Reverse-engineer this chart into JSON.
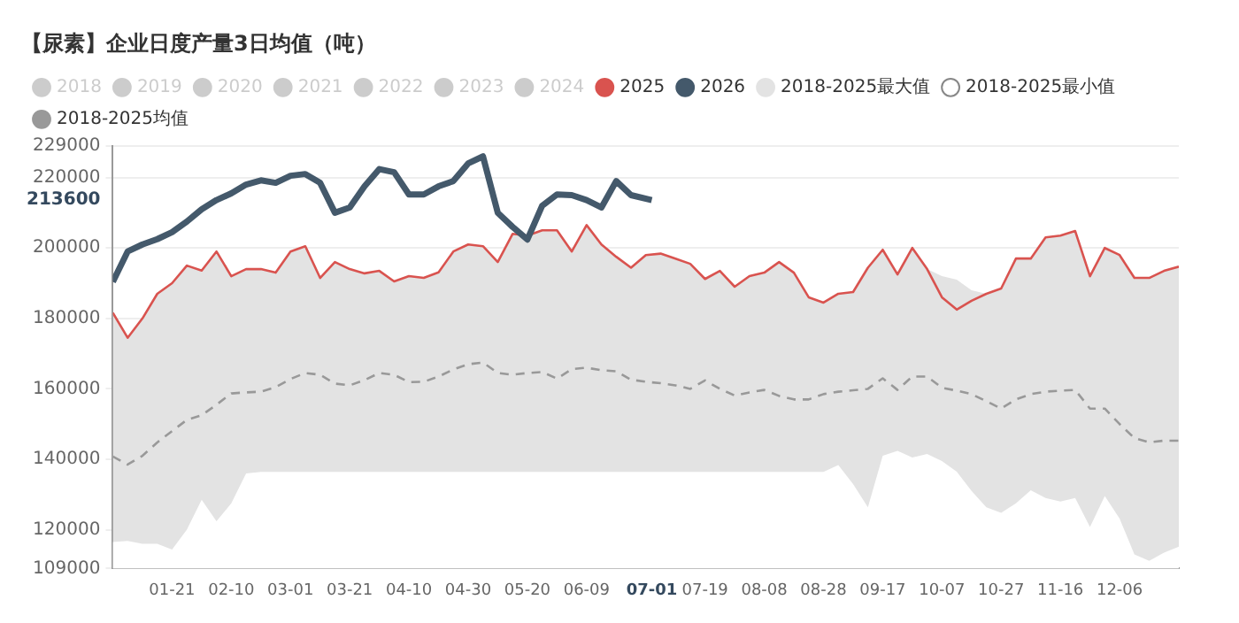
{
  "chart_data": {
    "type": "line",
    "title": "【尿素】企业日度产量3日均值（吨）",
    "x": [
      "--01-01",
      "--01-06",
      "--01-11",
      "--01-16",
      "--01-21",
      "--01-26",
      "--01-31",
      "--02-05",
      "--02-10",
      "--02-15",
      "--02-20",
      "--02-25",
      "--03-01",
      "--03-06",
      "--03-11",
      "--03-16",
      "--03-21",
      "--03-26",
      "--03-31",
      "--04-05",
      "--04-10",
      "--04-15",
      "--04-20",
      "--04-25",
      "--04-30",
      "--05-05",
      "--05-10",
      "--05-15",
      "--05-20",
      "--05-25",
      "--05-30",
      "--06-04",
      "--06-09",
      "--06-14",
      "--06-19",
      "--06-24",
      "--06-29",
      "--07-04",
      "--07-09",
      "--07-14",
      "--07-19",
      "--07-24",
      "--07-29",
      "--08-03",
      "--08-08",
      "--08-13",
      "--08-18",
      "--08-23",
      "--08-28",
      "--09-02",
      "--09-07",
      "--09-12",
      "--09-17",
      "--09-22",
      "--09-27",
      "--10-02",
      "--10-07",
      "--10-12",
      "--10-17",
      "--10-22",
      "--10-27",
      "--11-01",
      "--11-06",
      "--11-11",
      "--11-16",
      "--11-21",
      "--11-26",
      "--12-01",
      "--12-06",
      "--12-11",
      "--12-16",
      "--12-21",
      "--12-26"
    ],
    "xlim": [
      "--01-01",
      "--12-26"
    ],
    "xticks": [
      {
        "value": "--01-21",
        "label": "01-21"
      },
      {
        "value": "--02-10",
        "label": "02-10"
      },
      {
        "value": "--03-01",
        "label": "03-01"
      },
      {
        "value": "--03-21",
        "label": "03-21"
      },
      {
        "value": "--04-10",
        "label": "04-10"
      },
      {
        "value": "--04-30",
        "label": "04-30"
      },
      {
        "value": "--05-20",
        "label": "05-20"
      },
      {
        "value": "--06-09",
        "label": "06-09"
      },
      {
        "value": "--07-01",
        "label": "07-01"
      },
      {
        "value": "--07-19",
        "label": "07-19"
      },
      {
        "value": "--08-08",
        "label": "08-08"
      },
      {
        "value": "--08-28",
        "label": "08-28"
      },
      {
        "value": "--09-17",
        "label": "09-17"
      },
      {
        "value": "--10-07",
        "label": "10-07"
      },
      {
        "value": "--10-27",
        "label": "10-27"
      },
      {
        "value": "--11-16",
        "label": "11-16"
      },
      {
        "value": "--12-06",
        "label": "12-06"
      }
    ],
    "ylim": [
      109000,
      229000
    ],
    "yticks": [
      109000,
      120000,
      140000,
      160000,
      180000,
      200000,
      213600,
      220000,
      229000
    ],
    "grid": "y",
    "legend": "top left",
    "marker": "none",
    "series": [
      {
        "name": "2018",
        "color": "#cccccc",
        "values": [
          null,
          null,
          null,
          null,
          null,
          null,
          null,
          null,
          null,
          null,
          null,
          null,
          null,
          null,
          null,
          null,
          null,
          null,
          null,
          null,
          null,
          null,
          null,
          null,
          null,
          null,
          null,
          null,
          null,
          null,
          null,
          null,
          null,
          null,
          null,
          null,
          null,
          null,
          null,
          null,
          null,
          null,
          null,
          null,
          null,
          null,
          null,
          null,
          null,
          null,
          null,
          null,
          null,
          null,
          null,
          null,
          null,
          null,
          null,
          null,
          null,
          null,
          null,
          null,
          null,
          null,
          null,
          null,
          null,
          null,
          null,
          null,
          null
        ]
      },
      {
        "name": "2019",
        "color": "#cccccc",
        "values": [
          null,
          null,
          null,
          null,
          null,
          null,
          null,
          null,
          null,
          null,
          null,
          null,
          null,
          null,
          null,
          null,
          null,
          null,
          null,
          null,
          null,
          null,
          null,
          null,
          null,
          null,
          null,
          null,
          null,
          null,
          null,
          null,
          null,
          null,
          null,
          null,
          null,
          null,
          null,
          null,
          null,
          null,
          null,
          null,
          null,
          null,
          null,
          null,
          null,
          null,
          null,
          null,
          null,
          null,
          null,
          null,
          null,
          null,
          null,
          null,
          null,
          null,
          null,
          null,
          null,
          null,
          null,
          null,
          null,
          null,
          null,
          null,
          null
        ]
      },
      {
        "name": "2020",
        "color": "#cccccc",
        "values": [
          null,
          null,
          null,
          null,
          null,
          null,
          null,
          null,
          null,
          null,
          null,
          null,
          null,
          null,
          null,
          null,
          null,
          null,
          null,
          null,
          null,
          null,
          null,
          null,
          null,
          null,
          null,
          null,
          null,
          null,
          null,
          null,
          null,
          null,
          null,
          null,
          null,
          null,
          null,
          null,
          null,
          null,
          null,
          null,
          null,
          null,
          null,
          null,
          null,
          null,
          null,
          null,
          null,
          null,
          null,
          null,
          null,
          null,
          null,
          null,
          null,
          null,
          null,
          null,
          null,
          null,
          null,
          null,
          null,
          null,
          null,
          null,
          null
        ]
      },
      {
        "name": "2021",
        "color": "#cccccc",
        "values": [
          null,
          null,
          null,
          null,
          null,
          null,
          null,
          null,
          null,
          null,
          null,
          null,
          null,
          null,
          null,
          null,
          null,
          null,
          null,
          null,
          null,
          null,
          null,
          null,
          null,
          null,
          null,
          null,
          null,
          null,
          null,
          null,
          null,
          null,
          null,
          null,
          null,
          null,
          null,
          null,
          null,
          null,
          null,
          null,
          null,
          null,
          null,
          null,
          null,
          null,
          null,
          null,
          null,
          null,
          null,
          null,
          null,
          null,
          null,
          null,
          null,
          null,
          null,
          null,
          null,
          null,
          null,
          null,
          null,
          null,
          null,
          null,
          null
        ]
      },
      {
        "name": "2022",
        "color": "#cccccc",
        "values": [
          null,
          null,
          null,
          null,
          null,
          null,
          null,
          null,
          null,
          null,
          null,
          null,
          null,
          null,
          null,
          null,
          null,
          null,
          null,
          null,
          null,
          null,
          null,
          null,
          null,
          null,
          null,
          null,
          null,
          null,
          null,
          null,
          null,
          null,
          null,
          null,
          null,
          null,
          null,
          null,
          null,
          null,
          null,
          null,
          null,
          null,
          null,
          null,
          null,
          null,
          null,
          null,
          null,
          null,
          null,
          null,
          null,
          null,
          null,
          null,
          null,
          null,
          null,
          null,
          null,
          null,
          null,
          null,
          null,
          null,
          null,
          null,
          null
        ]
      },
      {
        "name": "2023",
        "color": "#cccccc",
        "values": [
          null,
          null,
          null,
          null,
          null,
          null,
          null,
          null,
          null,
          null,
          null,
          null,
          null,
          null,
          null,
          null,
          null,
          null,
          null,
          null,
          null,
          null,
          null,
          null,
          null,
          null,
          null,
          null,
          null,
          null,
          null,
          null,
          null,
          null,
          null,
          null,
          null,
          null,
          null,
          null,
          null,
          null,
          null,
          null,
          null,
          null,
          null,
          null,
          null,
          null,
          null,
          null,
          null,
          null,
          null,
          null,
          null,
          null,
          null,
          null,
          null,
          null,
          null,
          null,
          null,
          null,
          null,
          null,
          null,
          null,
          null,
          null,
          null
        ]
      },
      {
        "name": "2024",
        "color": "#cccccc",
        "values": [
          null,
          null,
          null,
          null,
          null,
          null,
          null,
          null,
          null,
          null,
          null,
          null,
          null,
          null,
          null,
          null,
          null,
          null,
          null,
          null,
          null,
          null,
          null,
          null,
          null,
          null,
          null,
          null,
          null,
          null,
          null,
          null,
          null,
          null,
          null,
          null,
          null,
          null,
          null,
          null,
          null,
          null,
          null,
          null,
          null,
          null,
          null,
          null,
          null,
          null,
          null,
          null,
          null,
          null,
          null,
          null,
          null,
          null,
          null,
          null,
          null,
          null,
          null,
          null,
          null,
          null,
          null,
          null,
          null,
          null,
          null,
          null,
          null
        ]
      },
      {
        "name": "2025",
        "color": "#d9534f",
        "values": [
          181600,
          174500,
          180000,
          187000,
          190000,
          195000,
          193600,
          199000,
          192000,
          194000,
          194000,
          193000,
          199000,
          200500,
          191500,
          196000,
          194000,
          192800,
          193500,
          190500,
          192000,
          191500,
          193100,
          199000,
          201000,
          200500,
          196000,
          204000,
          203500,
          205000,
          205000,
          199000,
          206500,
          201000,
          197500,
          194400,
          198000,
          198400,
          197000,
          195500,
          191200,
          193500,
          189000,
          192000,
          193000,
          196000,
          193000,
          186000,
          184500,
          187000,
          187500,
          194400,
          199500,
          192500,
          200000,
          194000,
          186000,
          182500,
          185000,
          187000,
          188500,
          197000,
          197000,
          203000,
          203500,
          204800,
          192000,
          200000,
          198000,
          191500,
          191500,
          193500,
          194700
        ]
      },
      {
        "name": "2026",
        "color": "#44596b",
        "x": [
          "--01-01",
          "--01-06",
          "--01-11",
          "--01-16",
          "--01-21",
          "--01-26",
          "--01-31",
          "--02-05",
          "--02-10",
          "--02-15",
          "--02-20",
          "--02-25",
          "--03-01",
          "--03-06",
          "--03-11",
          "--03-16",
          "--03-21",
          "--03-26",
          "--03-31",
          "--04-05",
          "--04-10",
          "--04-15",
          "--04-20",
          "--04-25",
          "--04-30",
          "--05-05",
          "--05-10",
          "--05-15",
          "--05-20",
          "--05-25",
          "--05-30",
          "--06-04",
          "--06-09",
          "--06-14",
          "--06-19",
          "--06-24",
          "--07-01"
        ],
        "values": [
          190400,
          199000,
          201000,
          202500,
          204500,
          207500,
          211000,
          213600,
          215500,
          218000,
          219200,
          218500,
          220500,
          221000,
          218500,
          210000,
          211500,
          217500,
          222400,
          221500,
          215200,
          215200,
          217500,
          219000,
          224000,
          226000,
          210000,
          206000,
          202400,
          212000,
          215200,
          215000,
          213600,
          211500,
          219000,
          215000,
          213600
        ]
      },
      {
        "name": "2018-2025最大值",
        "type": "area",
        "color": "#e3e3e3",
        "values": [
          181600,
          174500,
          180000,
          187000,
          190000,
          195000,
          193600,
          199000,
          192000,
          194000,
          194000,
          193000,
          199000,
          200500,
          191500,
          196000,
          194000,
          192800,
          193500,
          190500,
          192000,
          191500,
          193100,
          199000,
          201000,
          200500,
          196000,
          204000,
          203500,
          205000,
          205000,
          199000,
          206500,
          201000,
          197500,
          194400,
          198000,
          198400,
          197000,
          195500,
          191200,
          193500,
          189000,
          192000,
          193000,
          196000,
          193000,
          186000,
          184500,
          187000,
          187500,
          194400,
          199500,
          192500,
          200000,
          194000,
          192000,
          191000,
          188000,
          187000,
          188500,
          197000,
          197000,
          203000,
          203500,
          204800,
          192000,
          200000,
          198000,
          191500,
          191500,
          193500,
          194700
        ]
      },
      {
        "name": "2018-2025最小值",
        "type": "area",
        "color": "#ffffff",
        "values": [
          116500,
          116800,
          116000,
          116000,
          114400,
          120000,
          128500,
          122400,
          127500,
          136000,
          136400,
          136400,
          136400,
          136400,
          136400,
          136400,
          136400,
          136400,
          136400,
          136400,
          136400,
          136400,
          136400,
          136400,
          136400,
          136400,
          136400,
          136400,
          136400,
          136400,
          136400,
          136400,
          136400,
          136400,
          136400,
          136400,
          136400,
          136400,
          136400,
          136400,
          136400,
          136400,
          136400,
          136400,
          136400,
          136400,
          136400,
          136400,
          136400,
          138400,
          133000,
          126400,
          141000,
          142400,
          140500,
          141500,
          139500,
          136500,
          131000,
          126400,
          124800,
          127500,
          131200,
          129000,
          128000,
          129000,
          120800,
          129600,
          123200,
          113000,
          111200,
          113500,
          115200
        ]
      },
      {
        "name": "2018-2025均值",
        "color": "#999999",
        "line_style": "dashed",
        "values": [
          140800,
          138500,
          141000,
          144800,
          148000,
          151200,
          152500,
          155500,
          158700,
          159000,
          159200,
          160500,
          162800,
          164500,
          164000,
          161500,
          161000,
          162500,
          164500,
          164000,
          161900,
          162000,
          163500,
          165500,
          167000,
          167500,
          164500,
          164000,
          164500,
          164800,
          162900,
          165600,
          166000,
          165300,
          165000,
          162600,
          162000,
          161600,
          161000,
          160000,
          162400,
          160000,
          158100,
          159000,
          159700,
          158000,
          157000,
          157000,
          158500,
          159200,
          159600,
          160000,
          163000,
          159700,
          163500,
          163500,
          160300,
          159500,
          158500,
          156500,
          154400,
          157000,
          158500,
          159200,
          159500,
          159700,
          154400,
          154400,
          150000,
          146000,
          144800,
          145300,
          145300
        ]
      }
    ]
  }
}
